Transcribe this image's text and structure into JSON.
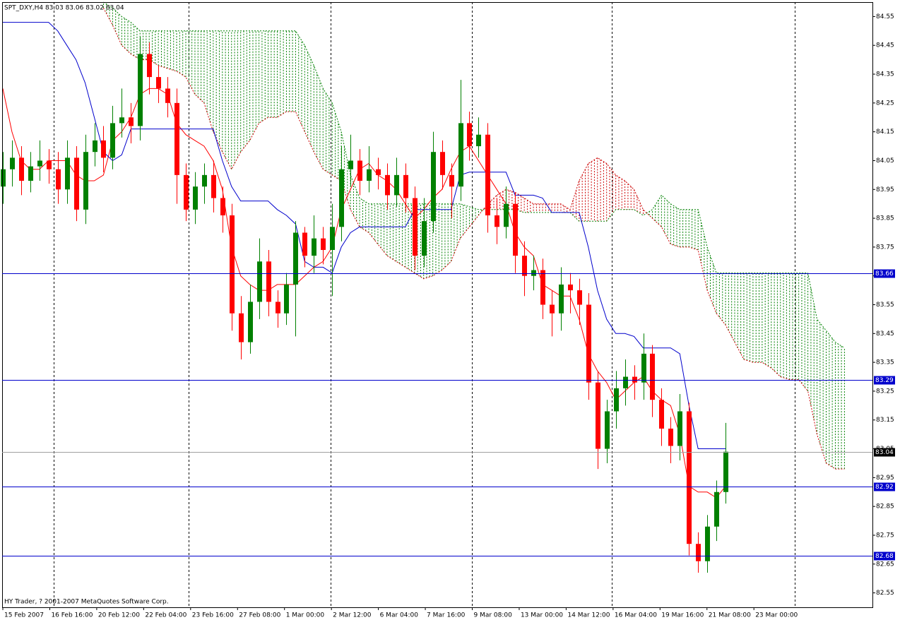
{
  "chart_data": {
    "type": "candlestick",
    "title": "SPT_DXY,H4  83.03 83.06 83.02 83.04",
    "footer": "HY Trader, ? 2001-2007 MetaQuotes Software Corp.",
    "ylim": [
      82.5,
      84.6
    ],
    "yticks": [
      84.55,
      84.45,
      84.35,
      84.25,
      84.15,
      84.05,
      83.95,
      83.85,
      83.75,
      83.65,
      83.55,
      83.45,
      83.35,
      83.25,
      83.15,
      83.05,
      82.95,
      82.85,
      82.75,
      82.65,
      82.55
    ],
    "categories": [
      "15 Feb 2007",
      "16 Feb 16:00",
      "20 Feb 12:00",
      "22 Feb 04:00",
      "23 Feb 16:00",
      "27 Feb 08:00",
      "1 Mar 00:00",
      "2 Mar 12:00",
      "6 Mar 04:00",
      "7 Mar 16:00",
      "9 Mar 08:00",
      "13 Mar 00:00",
      "14 Mar 12:00",
      "16 Mar 04:00",
      "19 Mar 16:00",
      "21 Mar 08:00",
      "23 Mar 00:00"
    ],
    "candles": {
      "up_color": "#008000",
      "down_color": "#ff0000",
      "open": [
        83.96,
        84.02,
        84.06,
        83.98,
        84.03,
        84.05,
        84.02,
        83.95,
        84.06,
        83.88,
        84.08,
        84.12,
        84.06,
        84.18,
        84.2,
        84.17,
        84.42,
        84.34,
        84.3,
        84.25,
        84.0,
        83.88,
        83.96,
        84.0,
        83.92,
        83.86,
        83.52,
        83.42,
        83.56,
        83.7,
        83.56,
        83.52,
        83.62,
        83.8,
        83.72,
        83.78,
        83.74,
        83.82,
        84.02,
        84.05,
        83.98,
        84.02,
        84.0,
        83.93,
        84.0,
        83.92,
        83.72,
        83.84,
        84.08,
        84.0,
        83.96,
        84.18,
        84.1,
        84.14,
        83.86,
        83.82,
        83.9,
        83.72,
        83.65,
        83.67,
        83.55,
        83.52,
        83.62,
        83.6,
        83.55,
        83.28,
        83.05,
        83.18,
        83.26,
        83.3,
        83.28,
        83.38,
        83.22,
        83.12,
        83.06,
        83.18,
        82.72,
        82.66,
        82.78,
        82.9
      ],
      "high": [
        84.08,
        84.12,
        84.1,
        84.08,
        84.12,
        84.09,
        84.08,
        84.12,
        84.1,
        84.14,
        84.18,
        84.17,
        84.24,
        84.3,
        84.25,
        84.48,
        84.46,
        84.38,
        84.34,
        84.3,
        84.04,
        84.01,
        84.04,
        84.05,
        83.96,
        83.9,
        83.58,
        83.62,
        83.78,
        83.74,
        83.6,
        83.66,
        83.84,
        83.82,
        83.86,
        83.82,
        83.9,
        84.1,
        84.14,
        84.09,
        84.1,
        84.06,
        84.04,
        84.06,
        84.04,
        83.96,
        83.92,
        84.15,
        84.12,
        84.04,
        84.33,
        84.22,
        84.2,
        84.18,
        83.92,
        83.96,
        83.94,
        83.77,
        83.72,
        83.71,
        83.6,
        83.68,
        83.66,
        83.64,
        83.59,
        83.32,
        83.22,
        83.32,
        83.36,
        83.34,
        83.45,
        83.41,
        83.26,
        83.16,
        83.24,
        83.21,
        82.76,
        82.82,
        82.94,
        83.14
      ],
      "low": [
        83.9,
        83.96,
        83.93,
        83.94,
        83.98,
        83.97,
        83.9,
        83.9,
        83.84,
        83.83,
        84.03,
        84.01,
        84.02,
        84.13,
        84.11,
        84.12,
        84.28,
        84.25,
        84.2,
        83.9,
        83.84,
        83.83,
        83.9,
        83.87,
        83.8,
        83.46,
        83.36,
        83.38,
        83.5,
        83.51,
        83.47,
        83.48,
        83.44,
        83.68,
        83.66,
        83.69,
        83.58,
        83.77,
        83.96,
        83.93,
        83.94,
        83.95,
        83.88,
        83.89,
        83.87,
        83.67,
        83.68,
        83.8,
        83.95,
        83.85,
        83.91,
        84.05,
        84.06,
        83.8,
        83.76,
        83.78,
        83.66,
        83.58,
        83.6,
        83.5,
        83.44,
        83.46,
        83.52,
        83.48,
        83.22,
        82.98,
        83.0,
        83.12,
        83.2,
        83.22,
        83.22,
        83.16,
        83.06,
        83.0,
        83.01,
        82.68,
        82.62,
        82.62,
        82.73,
        82.86
      ],
      "close": [
        84.02,
        84.06,
        83.98,
        84.03,
        84.05,
        84.02,
        83.95,
        84.06,
        83.88,
        84.08,
        84.12,
        84.06,
        84.18,
        84.2,
        84.17,
        84.42,
        84.34,
        84.3,
        84.25,
        84.0,
        83.88,
        83.96,
        84.0,
        83.92,
        83.86,
        83.52,
        83.42,
        83.56,
        83.7,
        83.56,
        83.52,
        83.62,
        83.8,
        83.72,
        83.78,
        83.74,
        83.82,
        84.02,
        84.05,
        83.98,
        84.02,
        84.0,
        83.93,
        84.0,
        83.92,
        83.72,
        83.84,
        84.08,
        84.0,
        83.96,
        84.18,
        84.1,
        84.14,
        83.86,
        83.82,
        83.9,
        83.72,
        83.65,
        83.67,
        83.55,
        83.52,
        83.62,
        83.6,
        83.55,
        83.28,
        83.05,
        83.18,
        83.26,
        83.3,
        83.28,
        83.38,
        83.22,
        83.12,
        83.06,
        83.18,
        82.72,
        82.66,
        82.78,
        82.9,
        83.04
      ]
    },
    "lines": [
      {
        "color": "#ff0000",
        "values": [
          84.3,
          84.15,
          84.05,
          84.02,
          84.02,
          84.05,
          84.05,
          84.05,
          84.0,
          83.98,
          83.98,
          84.0,
          84.12,
          84.15,
          84.2,
          84.28,
          84.3,
          84.3,
          84.28,
          84.18,
          84.14,
          84.12,
          84.1,
          84.05,
          83.95,
          83.75,
          83.65,
          83.62,
          83.6,
          83.6,
          83.62,
          83.62,
          83.62,
          83.65,
          83.68,
          83.7,
          83.75,
          83.88,
          83.95,
          84.02,
          84.04,
          84.0,
          83.98,
          83.95,
          83.9,
          83.85,
          83.88,
          83.92,
          83.95,
          84.02,
          84.08,
          84.1,
          84.05,
          84.0,
          83.95,
          83.9,
          83.8,
          83.75,
          83.72,
          83.62,
          83.6,
          83.58,
          83.58,
          83.5,
          83.38,
          83.32,
          83.28,
          83.22,
          83.25,
          83.28,
          83.3,
          83.25,
          83.22,
          83.2,
          83.1,
          82.92,
          82.9,
          82.9,
          82.88,
          82.92
        ]
      },
      {
        "color": "#0000cc",
        "values": [
          84.53,
          84.53,
          84.53,
          84.53,
          84.53,
          84.53,
          84.5,
          84.45,
          84.4,
          84.32,
          84.2,
          84.08,
          84.05,
          84.07,
          84.16,
          84.16,
          84.16,
          84.16,
          84.16,
          84.16,
          84.16,
          84.16,
          84.16,
          84.16,
          84.05,
          83.96,
          83.91,
          83.91,
          83.91,
          83.91,
          83.88,
          83.86,
          83.83,
          83.7,
          83.68,
          83.68,
          83.66,
          83.75,
          83.8,
          83.82,
          83.82,
          83.82,
          83.82,
          83.82,
          83.82,
          83.88,
          83.88,
          83.88,
          83.88,
          83.88,
          84.0,
          84.01,
          84.01,
          84.01,
          84.01,
          84.01,
          83.93,
          83.93,
          83.93,
          83.92,
          83.87,
          83.87,
          83.87,
          83.87,
          83.75,
          83.6,
          83.5,
          83.45,
          83.45,
          83.44,
          83.4,
          83.4,
          83.4,
          83.4,
          83.38,
          83.2,
          83.05,
          83.05,
          83.05,
          83.05
        ]
      }
    ],
    "cloud": {
      "a": {
        "color": "#cc0000",
        "values": [
          null,
          null,
          null,
          null,
          null,
          null,
          null,
          null,
          null,
          null,
          null,
          84.58,
          84.52,
          84.45,
          84.42,
          84.4,
          84.4,
          84.38,
          84.37,
          84.36,
          84.34,
          84.28,
          84.25,
          84.15,
          84.08,
          84.02,
          84.08,
          84.12,
          84.18,
          84.2,
          84.2,
          84.22,
          84.22,
          84.15,
          84.08,
          84.02,
          84.0,
          83.98,
          83.88,
          83.82,
          83.8,
          83.76,
          83.72,
          83.7,
          83.68,
          83.66,
          83.64,
          83.65,
          83.67,
          83.7,
          83.78,
          83.82,
          83.86,
          83.9,
          83.93,
          83.95,
          83.94,
          83.92,
          83.9,
          83.9,
          83.9,
          83.9,
          83.88,
          83.98,
          84.04,
          84.06,
          84.04,
          84.0,
          83.98,
          83.95,
          83.88,
          83.85,
          83.82,
          83.76,
          83.75,
          83.75,
          83.74,
          83.6,
          83.52,
          83.48,
          83.42,
          83.36,
          83.35,
          83.35,
          83.33,
          83.3,
          83.29,
          83.29,
          83.25,
          83.1,
          83.0,
          82.98,
          82.98
        ]
      },
      "b": {
        "color": "#008000",
        "values": [
          null,
          null,
          null,
          null,
          null,
          null,
          null,
          null,
          null,
          null,
          null,
          84.6,
          84.58,
          84.55,
          84.53,
          84.5,
          84.5,
          84.5,
          84.5,
          84.5,
          84.5,
          84.5,
          84.5,
          84.5,
          84.5,
          84.5,
          84.5,
          84.5,
          84.5,
          84.5,
          84.5,
          84.5,
          84.5,
          84.45,
          84.38,
          84.3,
          84.25,
          84.15,
          84.0,
          83.92,
          83.9,
          83.9,
          83.9,
          83.9,
          83.9,
          83.9,
          83.9,
          83.9,
          83.9,
          83.9,
          83.9,
          83.89,
          83.88,
          83.88,
          83.88,
          83.88,
          83.88,
          83.87,
          83.87,
          83.87,
          83.87,
          83.87,
          83.87,
          83.84,
          83.84,
          83.84,
          83.84,
          83.88,
          83.88,
          83.88,
          83.86,
          83.88,
          83.93,
          83.9,
          83.88,
          83.88,
          83.88,
          83.75,
          83.66,
          83.66,
          83.66,
          83.66,
          83.66,
          83.66,
          83.66,
          83.66,
          83.66,
          83.66,
          83.66,
          83.5,
          83.46,
          83.42,
          83.4
        ]
      }
    },
    "levels": {
      "color": "#0000cc",
      "values": [
        83.66,
        83.29,
        82.92,
        82.68
      ]
    },
    "price": {
      "color": "#a0a0a0",
      "value": 83.04
    }
  }
}
